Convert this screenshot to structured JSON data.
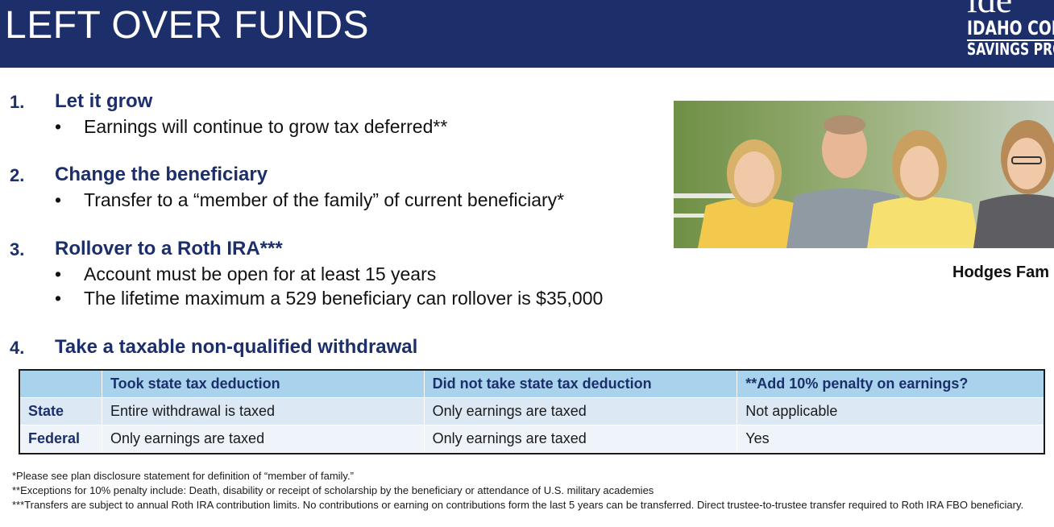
{
  "header": {
    "title": "LEFT OVER FUNDS",
    "logo_mark": "ide",
    "logo_line1": "IDAHO COL",
    "logo_line2": "SAVINGS PRO"
  },
  "options": [
    {
      "num": "1.",
      "title": "Let it grow",
      "bullets": [
        "Earnings will continue to grow tax deferred**"
      ]
    },
    {
      "num": "2.",
      "title": "Change the beneficiary",
      "bullets": [
        "Transfer to a “member of the family” of current beneficiary*"
      ]
    },
    {
      "num": "3.",
      "title": "Rollover to a Roth IRA***",
      "bullets": [
        "Account must be open for at least 15 years",
        "The lifetime maximum a 529 beneficiary can rollover is $35,000"
      ]
    },
    {
      "num": "4.",
      "title": "Take a taxable non-qualified withdrawal",
      "bullets": []
    }
  ],
  "bullet_char": "•",
  "photo": {
    "caption": "Hodges Fam"
  },
  "table": {
    "headers": [
      "",
      "Took state tax deduction",
      "Did not take state tax deduction",
      "**Add 10% penalty on earnings?"
    ],
    "rows": [
      [
        "State",
        "Entire withdrawal is taxed",
        "Only earnings are taxed",
        "Not applicable"
      ],
      [
        "Federal",
        "Only earnings are taxed",
        "Only earnings are taxed",
        "Yes"
      ]
    ]
  },
  "footnotes": [
    "*Please see plan disclosure statement for definition of “member of family.”",
    "**Exceptions for 10% penalty include: Death, disability or receipt of scholarship by the beneficiary or attendance of U.S. military academies",
    "***Transfers are subject to annual Roth IRA contribution limits. No contributions or earning on contributions form the last 5 years can be transferred. Direct trustee-to-trustee transfer required to Roth IRA FBO beneficiary."
  ],
  "colors": {
    "navy": "#1c2f6b",
    "table_header": "#a9d2ec",
    "row_odd": "#dce9f5",
    "row_even": "#eef4fa"
  }
}
